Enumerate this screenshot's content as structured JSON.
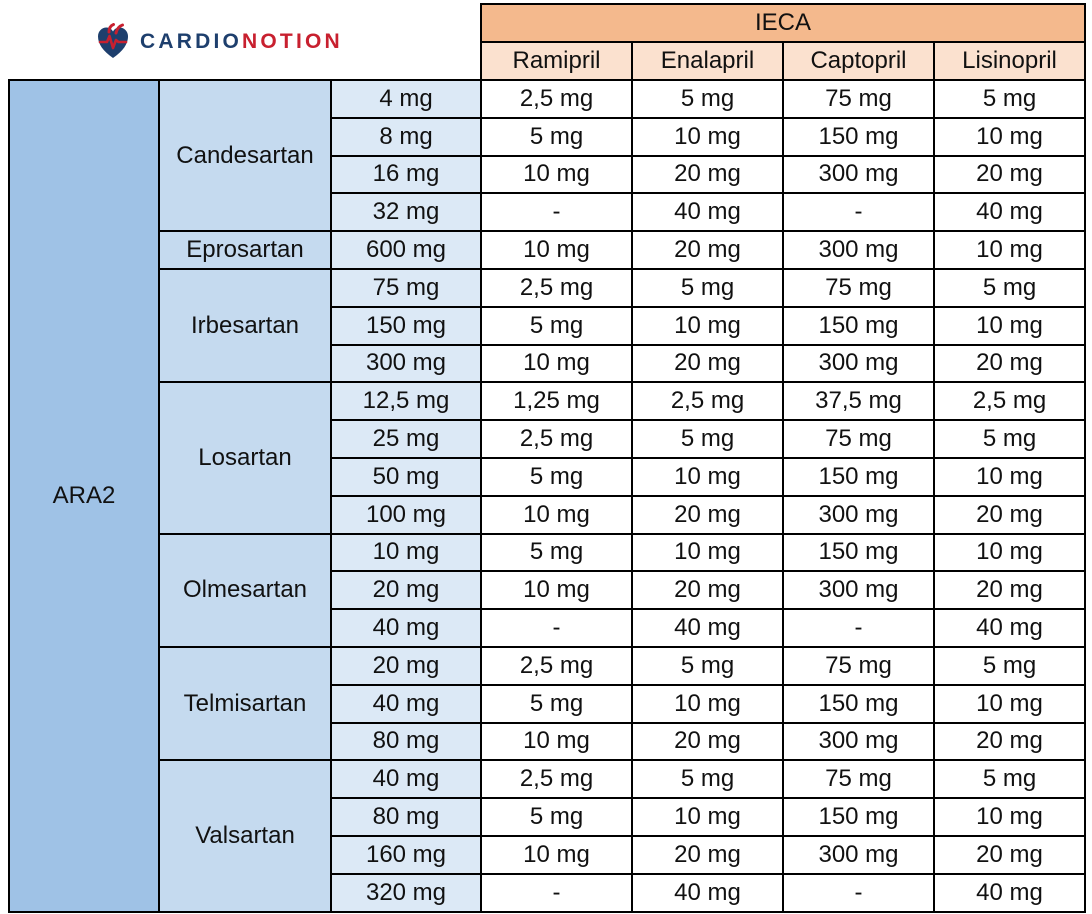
{
  "logo": {
    "icon": "heart-icon",
    "part1": "CARDIO",
    "part2": "NOTION",
    "colors": {
      "dark": "#1e3f6d",
      "red": "#c8202f"
    }
  },
  "table": {
    "group_header": "IECA",
    "drug_headers": [
      "Ramipril",
      "Enalapril",
      "Captopril",
      "Lisinopril"
    ],
    "row_group": "ARA2",
    "colors": {
      "ieca": "#f4b98d",
      "drug_header": "#fbe1cf",
      "ara2": "#9fc2e6",
      "ara2_name": "#c5daef",
      "dose": "#dce9f6"
    },
    "groups": [
      {
        "name": "Candesartan",
        "rows": [
          [
            "4 mg",
            "2,5 mg",
            "5 mg",
            "75 mg",
            "5 mg"
          ],
          [
            "8 mg",
            "5 mg",
            "10 mg",
            "150 mg",
            "10 mg"
          ],
          [
            "16 mg",
            "10 mg",
            "20 mg",
            "300 mg",
            "20 mg"
          ],
          [
            "32 mg",
            "-",
            "40 mg",
            "-",
            "40 mg"
          ]
        ]
      },
      {
        "name": "Eprosartan",
        "rows": [
          [
            "600 mg",
            "10 mg",
            "20 mg",
            "300 mg",
            "10 mg"
          ]
        ]
      },
      {
        "name": "Irbesartan",
        "rows": [
          [
            "75 mg",
            "2,5 mg",
            "5 mg",
            "75 mg",
            "5 mg"
          ],
          [
            "150 mg",
            "5 mg",
            "10 mg",
            "150 mg",
            "10 mg"
          ],
          [
            "300 mg",
            "10 mg",
            "20 mg",
            "300 mg",
            "20 mg"
          ]
        ]
      },
      {
        "name": "Losartan",
        "rows": [
          [
            "12,5 mg",
            "1,25 mg",
            "2,5 mg",
            "37,5 mg",
            "2,5 mg"
          ],
          [
            "25 mg",
            "2,5 mg",
            "5 mg",
            "75 mg",
            "5 mg"
          ],
          [
            "50 mg",
            "5 mg",
            "10 mg",
            "150 mg",
            "10 mg"
          ],
          [
            "100 mg",
            "10 mg",
            "20 mg",
            "300 mg",
            "20 mg"
          ]
        ]
      },
      {
        "name": "Olmesartan",
        "rows": [
          [
            "10 mg",
            "5 mg",
            "10 mg",
            "150 mg",
            "10 mg"
          ],
          [
            "20 mg",
            "10 mg",
            "20 mg",
            "300 mg",
            "20 mg"
          ],
          [
            "40 mg",
            "-",
            "40 mg",
            "-",
            "40 mg"
          ]
        ]
      },
      {
        "name": "Telmisartan",
        "rows": [
          [
            "20 mg",
            "2,5 mg",
            "5 mg",
            "75 mg",
            "5 mg"
          ],
          [
            "40 mg",
            "5 mg",
            "10 mg",
            "150 mg",
            "10 mg"
          ],
          [
            "80 mg",
            "10 mg",
            "20 mg",
            "300 mg",
            "20 mg"
          ]
        ]
      },
      {
        "name": "Valsartan",
        "rows": [
          [
            "40 mg",
            "2,5 mg",
            "5 mg",
            "75 mg",
            "5 mg"
          ],
          [
            "80 mg",
            "5 mg",
            "10 mg",
            "150 mg",
            "10 mg"
          ],
          [
            "160 mg",
            "10 mg",
            "20 mg",
            "300 mg",
            "20 mg"
          ],
          [
            "320 mg",
            "-",
            "40 mg",
            "-",
            "40 mg"
          ]
        ]
      }
    ]
  }
}
